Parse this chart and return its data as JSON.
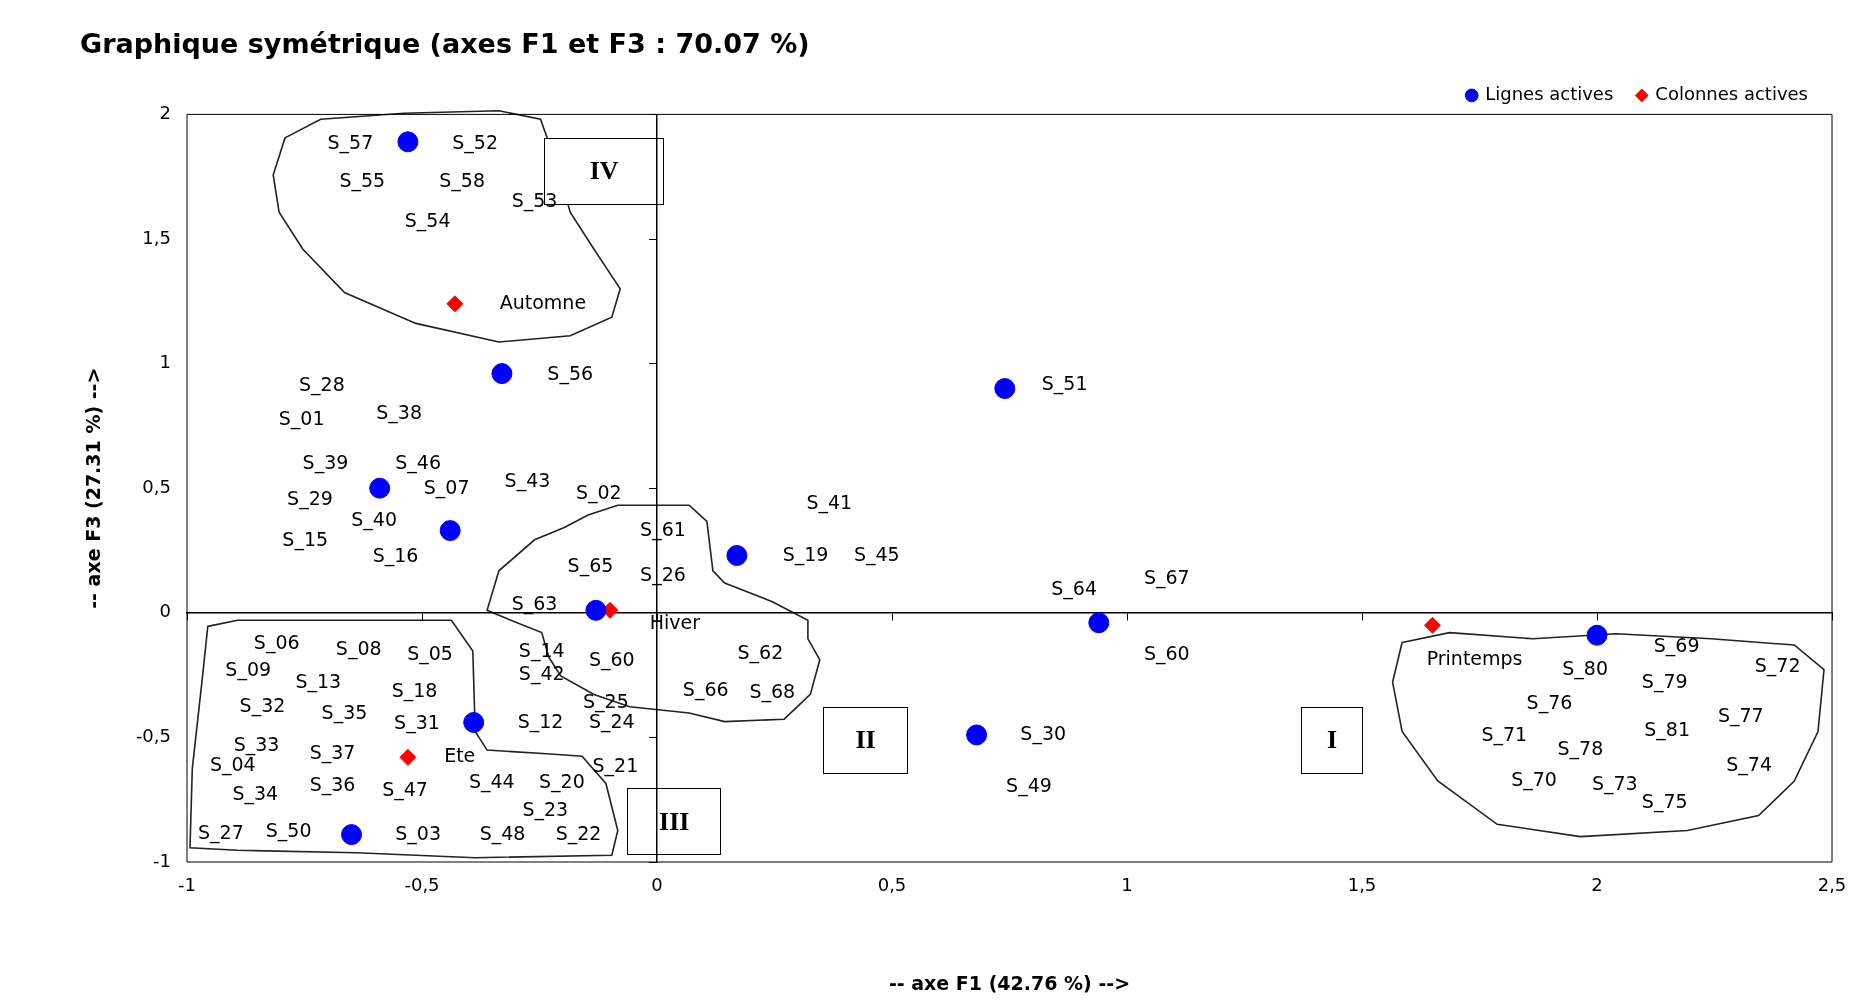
{
  "chart_data": {
    "type": "scatter",
    "title": "Graphique symétrique (axes F1 et F3 : 70.07 %)",
    "xlabel": "-- axe F1 (42.76 %) -->",
    "ylabel": "-- axe F3 (27.31 %) -->",
    "xlim": [
      -1,
      2.5
    ],
    "xticks": [
      -1,
      {
        "value": -0.5,
        "label": "-0,5"
      },
      0,
      {
        "value": 0.5,
        "label": "0,5"
      },
      1,
      {
        "value": 1.5,
        "label": "1,5"
      },
      2,
      {
        "value": 2.5,
        "label": "2,5"
      }
    ],
    "ylim": [
      -1,
      2
    ],
    "yticks": [
      -1,
      {
        "value": -0.5,
        "label": "-0,5"
      },
      0,
      {
        "value": 0.5,
        "label": "0,5"
      },
      1,
      {
        "value": 1.5,
        "label": "1,5"
      },
      2
    ],
    "legend": "top right",
    "series": [
      {
        "name": "Lignes actives",
        "color": "#0000ff",
        "marker": "circle",
        "x": [
          -0.53,
          -0.33,
          0.74,
          -0.59,
          -0.44,
          0.17,
          -0.13,
          0.94,
          2.0,
          -0.39,
          0.68,
          -0.65
        ],
        "values": [
          1.89,
          0.96,
          0.9,
          0.5,
          0.33,
          0.23,
          0.01,
          -0.04,
          -0.09,
          -0.44,
          -0.49,
          -0.89
        ]
      },
      {
        "name": "Colonnes actives",
        "color": "#ff0000",
        "marker": "diamond",
        "x": [
          -0.43,
          -0.1,
          1.65,
          -0.53
        ],
        "values": [
          1.24,
          0.01,
          -0.05,
          -0.58
        ]
      }
    ],
    "annotations": [
      "I",
      "II",
      "III",
      "IV",
      "Automne",
      "Hiver",
      "Printemps",
      "Ete",
      "S_57",
      "S_52",
      "S_55",
      "S_58",
      "S_53",
      "S_54",
      "S_28",
      "S_01",
      "S_38",
      "S_39",
      "S_46",
      "S_07",
      "S_43",
      "S_02",
      "S_29",
      "S_40",
      "S_15",
      "S_16",
      "S_56",
      "S_51",
      "S_41",
      "S_61",
      "S_65",
      "S_26",
      "S_19",
      "S_45",
      "S_63",
      "S_64",
      "S_67",
      "S_60",
      "S_14",
      "S_42",
      "S_60",
      "S_62",
      "S_66",
      "S_68",
      "S_25",
      "S_12",
      "S_24",
      "S_21",
      "S_30",
      "S_49",
      "S_06",
      "S_08",
      "S_05",
      "S_09",
      "S_13",
      "S_18",
      "S_32",
      "S_35",
      "S_31",
      "S_33",
      "S_37",
      "S_04",
      "S_34",
      "S_36",
      "S_47",
      "S_44",
      "S_20",
      "S_23",
      "S_27",
      "S_50",
      "S_03",
      "S_48",
      "S_22",
      "S_80",
      "S_69",
      "S_79",
      "S_72",
      "S_76",
      "S_77",
      "S_71",
      "S_81",
      "S_78",
      "S_74",
      "S_70",
      "S_73",
      "S_75"
    ]
  }
}
